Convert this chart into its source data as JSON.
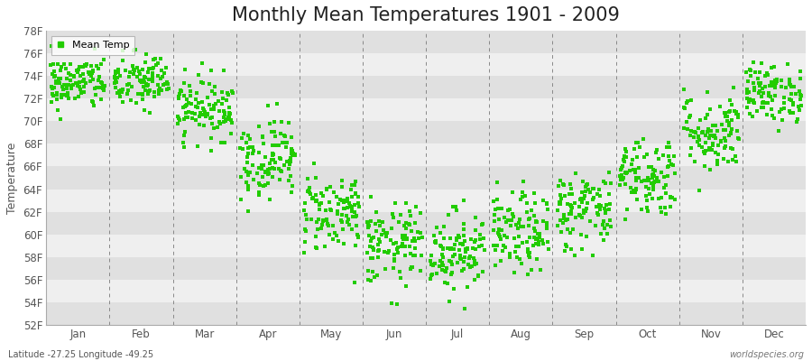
{
  "title": "Monthly Mean Temperatures 1901 - 2009",
  "ylabel": "Temperature",
  "xlabel": "",
  "months": [
    "Jan",
    "Feb",
    "Mar",
    "Apr",
    "May",
    "Jun",
    "Jul",
    "Aug",
    "Sep",
    "Oct",
    "Nov",
    "Dec"
  ],
  "ylim": [
    52,
    78
  ],
  "yticks": [
    52,
    54,
    56,
    58,
    60,
    62,
    64,
    66,
    68,
    70,
    72,
    74,
    76,
    78
  ],
  "ytick_labels": [
    "52F",
    "54F",
    "56F",
    "58F",
    "60F",
    "62F",
    "64F",
    "66F",
    "68F",
    "70F",
    "72F",
    "74F",
    "76F",
    "78F"
  ],
  "marker_color": "#22cc00",
  "marker": "s",
  "marker_size": 2.5,
  "legend_label": "Mean Temp",
  "footnote_left": "Latitude -27.25 Longitude -49.25",
  "footnote_right": "worldspecies.org",
  "background_color": "#e8e8e8",
  "band_colors": [
    "#e0e0e0",
    "#efefef"
  ],
  "grid_color": "#999999",
  "title_fontsize": 15,
  "axis_fontsize": 9,
  "tick_fontsize": 8.5,
  "num_years": 109,
  "monthly_means_f": [
    73.4,
    73.5,
    71.2,
    66.8,
    62.0,
    59.0,
    58.6,
    60.0,
    62.2,
    65.2,
    69.0,
    72.5
  ],
  "monthly_stds_f": [
    1.2,
    1.3,
    1.4,
    1.8,
    1.8,
    1.8,
    1.8,
    1.8,
    1.8,
    1.8,
    1.8,
    1.3
  ]
}
